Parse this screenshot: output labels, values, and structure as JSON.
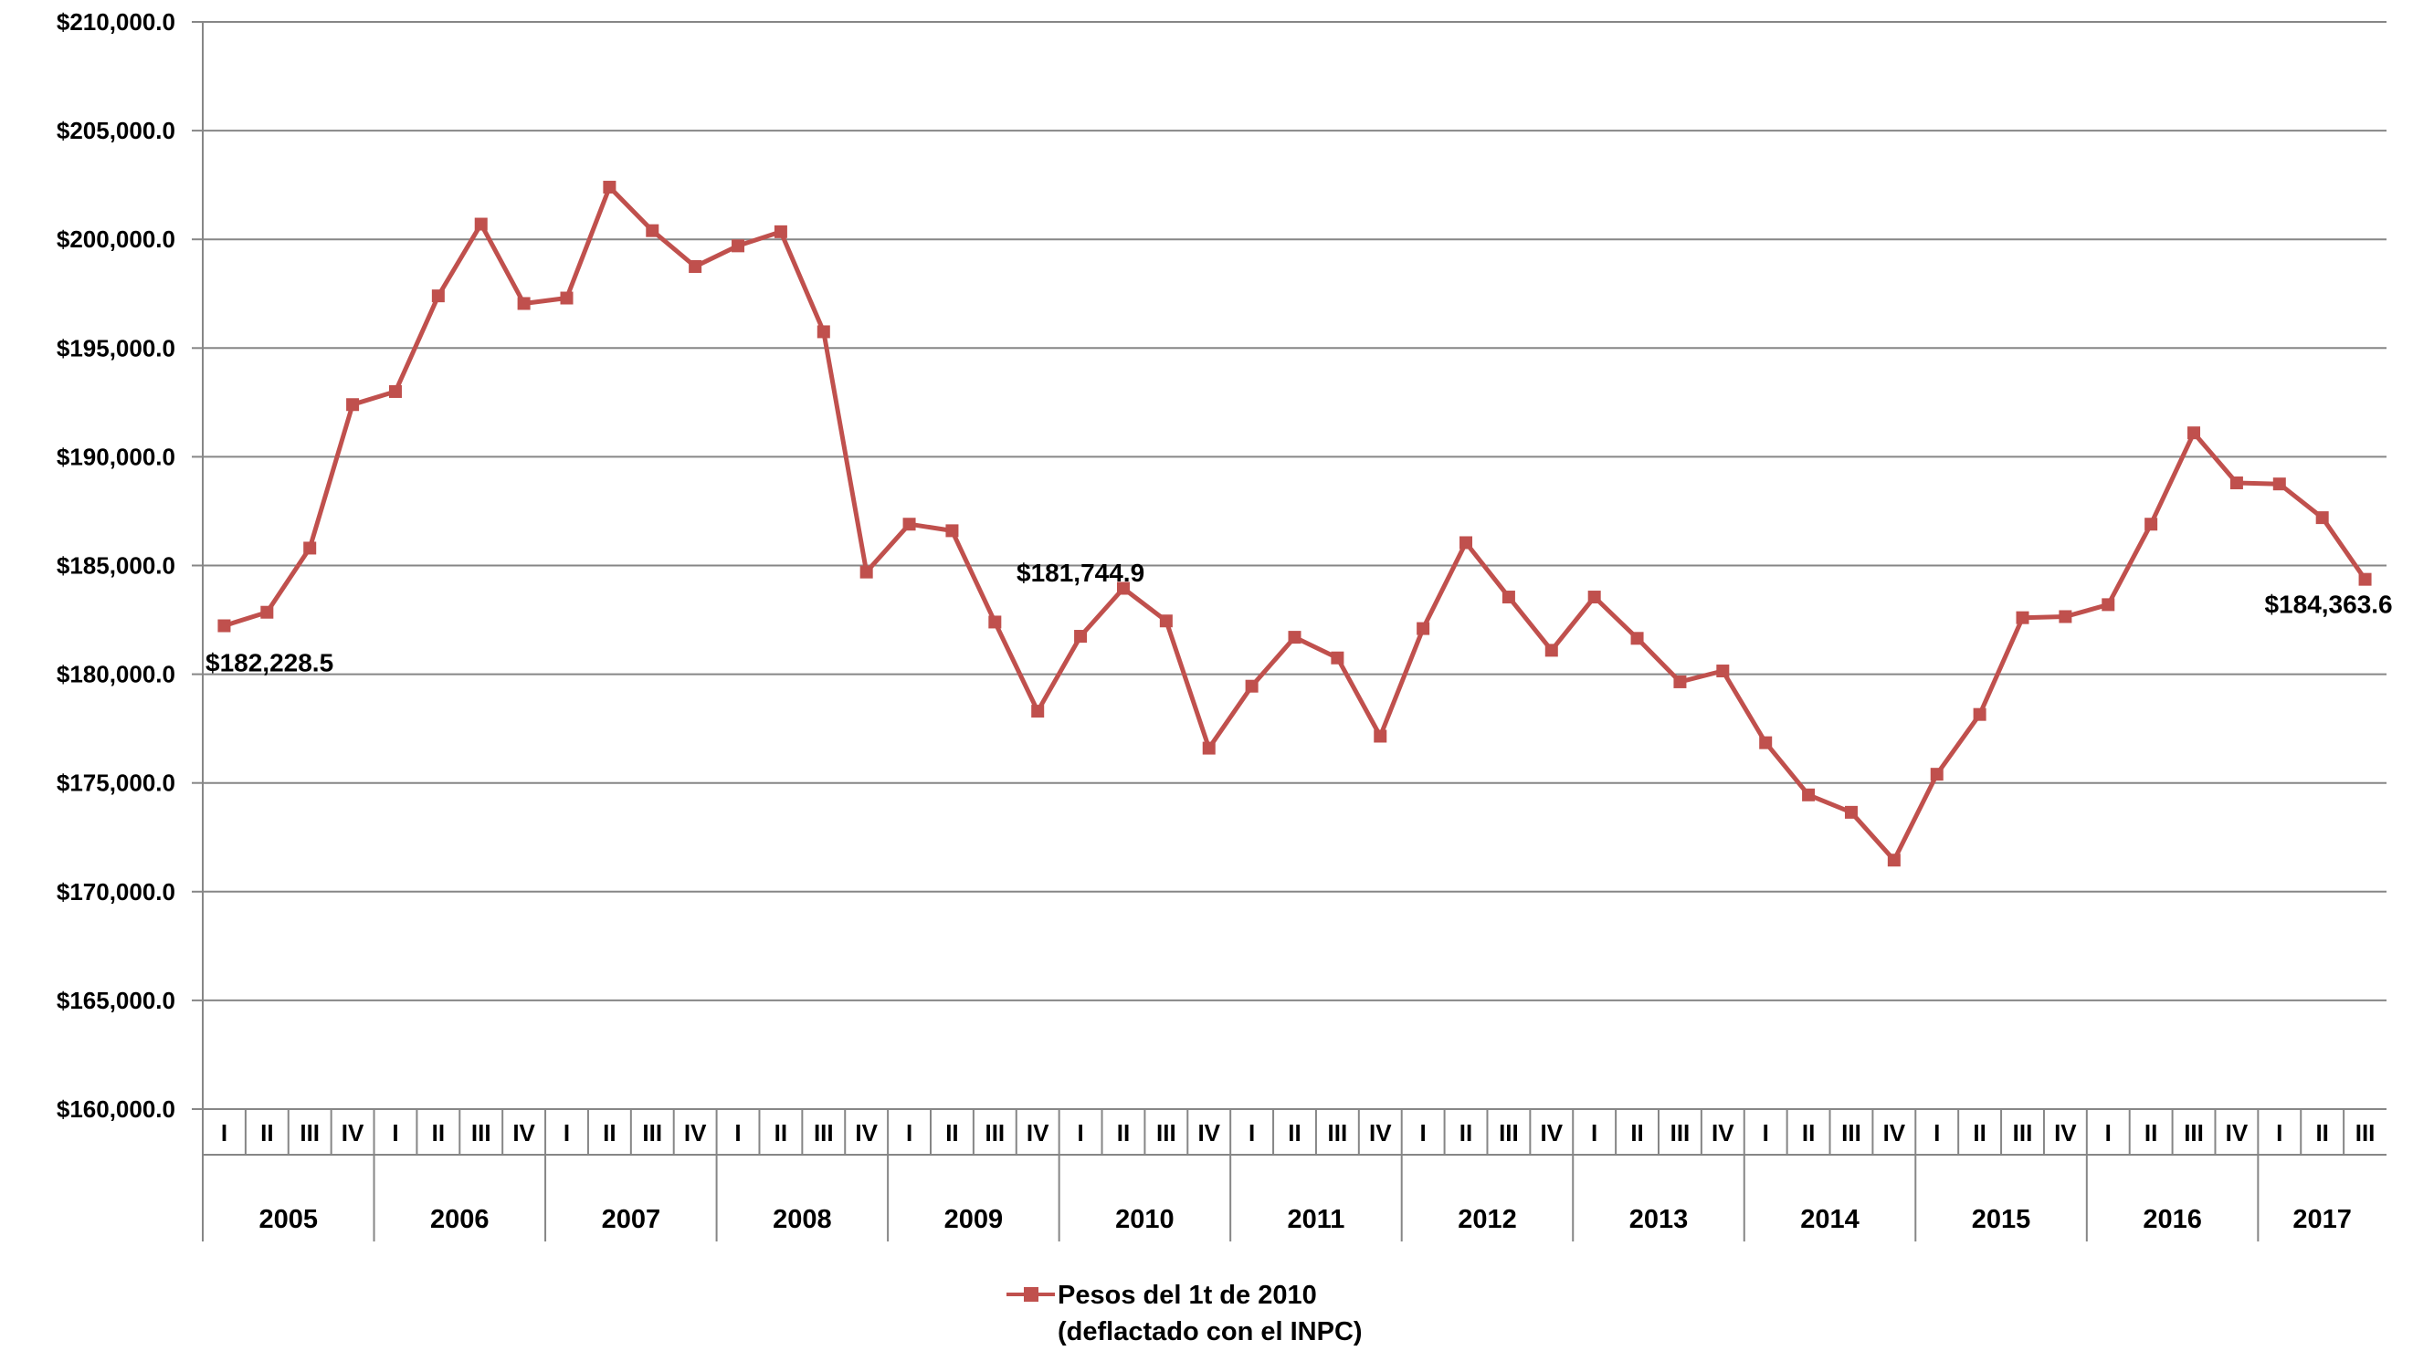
{
  "chart_data": {
    "type": "line",
    "y_ticks": [
      "$210,000.0",
      "$205,000.0",
      "$200,000.0",
      "$195,000.0",
      "$190,000.0",
      "$185,000.0",
      "$180,000.0",
      "$175,000.0",
      "$170,000.0",
      "$165,000.0",
      "$160,000.0"
    ],
    "ylim": [
      160000,
      210000
    ],
    "grid": true,
    "legend_position": "bottom",
    "years": [
      "2005",
      "2006",
      "2007",
      "2008",
      "2009",
      "2010",
      "2011",
      "2012",
      "2013",
      "2014",
      "2015",
      "2016",
      "2017"
    ],
    "quarters_per_year": [
      4,
      4,
      4,
      4,
      4,
      4,
      4,
      4,
      4,
      4,
      4,
      4,
      3
    ],
    "quarter_labels": [
      "I",
      "II",
      "III",
      "IV"
    ],
    "colors": {
      "series": "#c0504d",
      "grid": "#868686",
      "axis": "#868686"
    },
    "series": [
      {
        "name": "Pesos del 1t  de 2010",
        "legend_line2": "(deflactado con el INPC)",
        "values": [
          182228.5,
          182850,
          185800,
          192400,
          193000,
          197400,
          200700,
          197050,
          197300,
          202400,
          200400,
          198750,
          199700,
          200350,
          195750,
          184700,
          186900,
          186600,
          182400,
          178300,
          181744.9,
          183950,
          182450,
          176600,
          179450,
          181700,
          180750,
          177150,
          182100,
          186050,
          183550,
          181100,
          183550,
          181650,
          179650,
          180150,
          176850,
          174450,
          173650,
          171450,
          175400,
          178150,
          182600,
          182650,
          183200,
          186900,
          191100,
          188800,
          188750,
          187200,
          184363.6
        ]
      }
    ],
    "data_labels": [
      {
        "index": 0,
        "text": "$182,228.5"
      },
      {
        "index": 20,
        "text": "$181,744.9"
      },
      {
        "index": 50,
        "text": "$184,363.6"
      }
    ]
  }
}
